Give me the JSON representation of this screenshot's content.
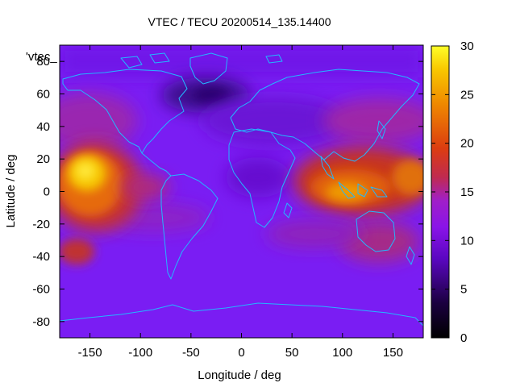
{
  "chart_data": {
    "type": "heatmap",
    "title": "VTEC / TECU 20200514_135.14400",
    "xlabel": "Longitude / deg",
    "ylabel": "Latitude / deg",
    "xlim": [
      -180,
      180
    ],
    "ylim": [
      -90,
      90
    ],
    "x_ticks": [
      "-150",
      "-100",
      "-50",
      "0",
      "50",
      "100",
      "150"
    ],
    "y_ticks": [
      "-80",
      "-60",
      "-40",
      "-20",
      "0",
      "20",
      "40",
      "60",
      "80"
    ],
    "colorbar": {
      "range": [
        0,
        30
      ],
      "ticks": [
        "0",
        "5",
        "10",
        "15",
        "20",
        "25",
        "30"
      ],
      "palette": "black-blue-purple-red-orange-yellow"
    },
    "legend_label": "'vtec_",
    "colors": {
      "background": "#7a1df3",
      "coastline": "#22b8ff"
    },
    "features": [
      {
        "name": "equatorial anomaly (Pacific)",
        "lon": -150,
        "lat": 12,
        "value": 28
      },
      {
        "name": "equatorial anomaly (Indian/Asia)",
        "lon": 100,
        "lat": 3,
        "value": 22
      },
      {
        "name": "mid-latitude low (N. Atlantic)",
        "lon": -30,
        "lat": 60,
        "value": 3
      }
    ]
  }
}
